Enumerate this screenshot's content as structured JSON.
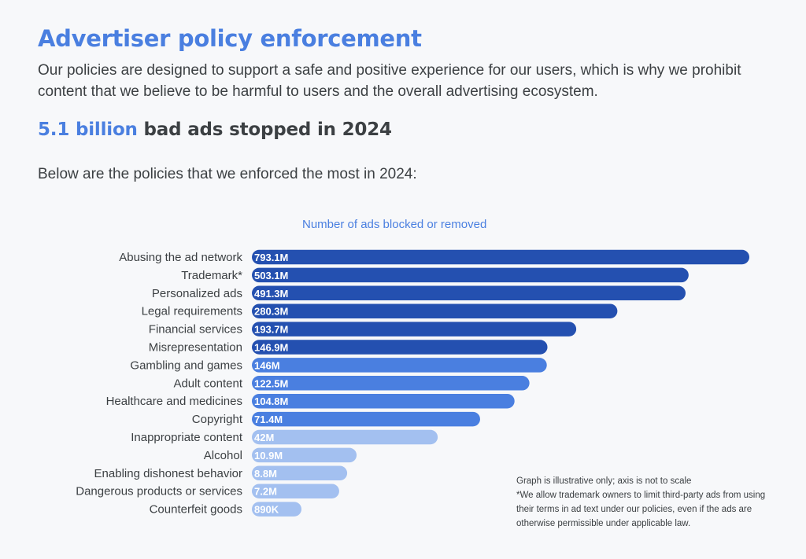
{
  "header": {
    "title": "Advertiser policy enforcement",
    "intro": "Our policies are designed to support a safe and positive experience for our users, which is why we prohibit content that we believe to be harmful to users and the overall advertising ecosystem.",
    "stat_highlight": "5.1 billion",
    "stat_rest": " bad ads stopped in 2024",
    "lead": "Below are the policies that we enforced the most in 2024:"
  },
  "notes": {
    "scale_note": "Graph is illustrative only; axis is not to scale",
    "trademark_note": "*We allow trademark owners to limit third-party ads from using their terms in ad text under our policies, even if the ads are otherwise permissible under applicable law."
  },
  "colors": {
    "dark": "#2450b0",
    "mid": "#4a7fe0",
    "light": "#a3c0f0",
    "label": "#3c4043"
  },
  "chart_data": {
    "type": "bar",
    "orientation": "horizontal",
    "title": "Number of ads blocked or removed",
    "note": "Graph is illustrative only; axis is not to scale",
    "unit": "M",
    "categories": [
      "Abusing the ad network",
      "Trademark*",
      "Personalized ads",
      "Legal requirements",
      "Financial services",
      "Misrepresentation",
      "Gambling and games",
      "Adult content",
      "Healthcare and medicines",
      "Copyright",
      "Inappropriate content",
      "Alcohol",
      "Enabling dishonest behavior",
      "Dangerous products or services",
      "Counterfeit goods"
    ],
    "values": [
      793.1,
      503.1,
      491.3,
      280.3,
      193.7,
      146.9,
      146,
      122.5,
      104.8,
      71.4,
      42,
      10.9,
      8.8,
      7.2,
      0.89
    ],
    "value_labels": [
      "793.1M",
      "503.1M",
      "491.3M",
      "280.3M",
      "193.7M",
      "146.9M",
      "146M",
      "122.5M",
      "104.8M",
      "71.4M",
      "42M",
      "10.9M",
      "8.8M",
      "7.2M",
      "890K"
    ],
    "bar_color_groups": [
      "dark",
      "dark",
      "dark",
      "dark",
      "dark",
      "dark",
      "mid",
      "mid",
      "mid",
      "mid",
      "light",
      "light",
      "light",
      "light",
      "light"
    ]
  }
}
